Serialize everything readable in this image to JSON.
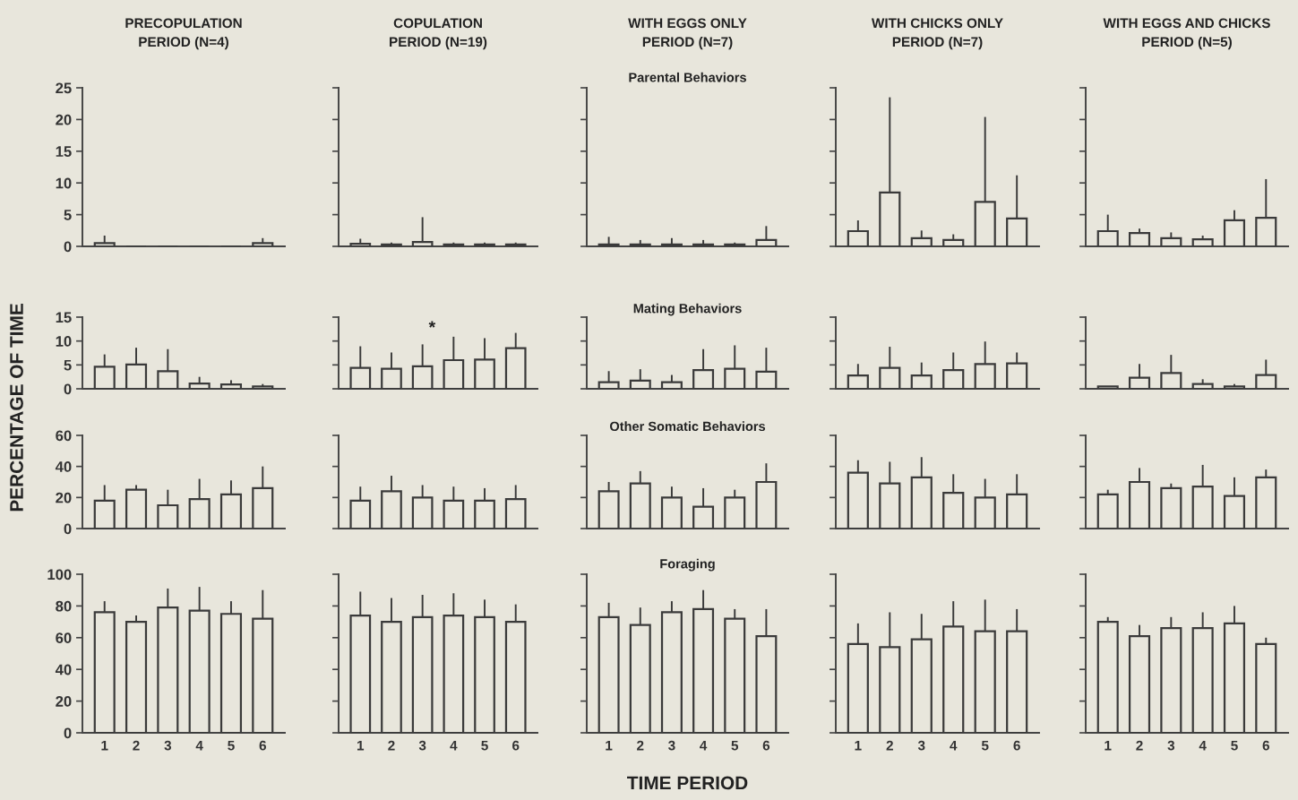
{
  "chart_data": [
    {
      "type": "bar",
      "title": "PRECOPULATION\nPERIOD (N=4)",
      "categories": [
        "1",
        "2",
        "3",
        "4",
        "5",
        "6"
      ],
      "values": [
        0.5,
        0,
        0,
        0,
        0,
        0.5
      ],
      "errors": [
        [
          0.5,
          1.7
        ],
        null,
        null,
        null,
        null,
        [
          0.5,
          1.3
        ]
      ],
      "color": "#3a3a3a",
      "ylim": [
        0,
        25
      ],
      "yticks": [
        0,
        5,
        10,
        15,
        20,
        25
      ],
      "tick_labels": "y"
    },
    {
      "type": "bar",
      "title": "COPULATION\nPERIOD (N=19)",
      "categories": [
        "1",
        "2",
        "3",
        "4",
        "5",
        "6"
      ],
      "values": [
        0.4,
        0.3,
        0.7,
        0.3,
        0.3,
        0.3
      ],
      "errors": [
        [
          0.4,
          1.2
        ],
        [
          0.3,
          0.6
        ],
        [
          0.7,
          4.6
        ],
        [
          0.3,
          0.6
        ],
        [
          0.3,
          0.6
        ],
        [
          0.3,
          0.6
        ]
      ],
      "color": "#3a3a3a",
      "ylim": [
        0,
        25
      ],
      "yticks": [
        0,
        5,
        10,
        15,
        20,
        25
      ],
      "tick_labels": false
    },
    {
      "type": "bar",
      "title": "WITH EGGS ONLY\nPERIOD (N=7)",
      "subtitle": "Parental Behaviors",
      "categories": [
        "1",
        "2",
        "3",
        "4",
        "5",
        "6"
      ],
      "values": [
        0.3,
        0.3,
        0.3,
        0.3,
        0.3,
        1.0
      ],
      "errors": [
        [
          0.3,
          1.5
        ],
        [
          0.3,
          1.0
        ],
        [
          0.3,
          1.3
        ],
        [
          0.3,
          1.0
        ],
        [
          0.3,
          0.6
        ],
        [
          1.0,
          3.2
        ]
      ],
      "color": "#3a3a3a",
      "ylim": [
        0,
        25
      ],
      "yticks": [
        0,
        5,
        10,
        15,
        20,
        25
      ],
      "tick_labels": false
    },
    {
      "type": "bar",
      "title": "WITH CHICKS ONLY\nPERIOD (N=7)",
      "categories": [
        "1",
        "2",
        "3",
        "4",
        "5",
        "6"
      ],
      "values": [
        2.4,
        8.5,
        1.3,
        1.0,
        7.0,
        4.4
      ],
      "errors": [
        [
          2.4,
          4.1
        ],
        [
          8.5,
          23.5
        ],
        [
          1.3,
          2.5
        ],
        [
          1.0,
          1.9
        ],
        [
          7.0,
          20.4
        ],
        [
          4.4,
          11.2
        ]
      ],
      "color": "#3a3a3a",
      "ylim": [
        0,
        25
      ],
      "yticks": [
        0,
        5,
        10,
        15,
        20,
        25
      ],
      "tick_labels": false
    },
    {
      "type": "bar",
      "title": "WITH EGGS AND CHICKS\nPERIOD (N=5)",
      "categories": [
        "1",
        "2",
        "3",
        "4",
        "5",
        "6"
      ],
      "values": [
        2.4,
        2.1,
        1.3,
        1.1,
        4.1,
        4.5
      ],
      "errors": [
        [
          2.4,
          5.0
        ],
        [
          2.1,
          2.8
        ],
        [
          1.3,
          2.2
        ],
        [
          1.1,
          1.7
        ],
        [
          4.1,
          5.7
        ],
        [
          4.5,
          10.6
        ]
      ],
      "color": "#3a3a3a",
      "ylim": [
        0,
        25
      ],
      "yticks": [
        0,
        5,
        10,
        15,
        20,
        25
      ],
      "tick_labels": false
    },
    {
      "type": "bar",
      "ylabel": "PERCENTAGE OF TIME",
      "categories": [
        "1",
        "2",
        "3",
        "4",
        "5",
        "6"
      ],
      "values": [
        4.6,
        5.1,
        3.7,
        1.1,
        0.9,
        0.5
      ],
      "errors": [
        [
          4.6,
          7.2
        ],
        [
          5.1,
          8.6
        ],
        [
          3.7,
          8.3
        ],
        [
          1.1,
          2.5
        ],
        [
          0.9,
          1.8
        ],
        [
          0.5,
          1.0
        ]
      ],
      "color": "#3a3a3a",
      "ylim": [
        0,
        15
      ],
      "yticks": [
        0,
        5,
        10,
        15
      ],
      "tick_labels": "y"
    },
    {
      "type": "bar",
      "categories": [
        "1",
        "2",
        "3",
        "4",
        "5",
        "6"
      ],
      "values": [
        4.4,
        4.2,
        4.7,
        6.0,
        6.1,
        8.5
      ],
      "errors": [
        [
          4.4,
          8.9
        ],
        [
          4.2,
          7.6
        ],
        [
          4.7,
          9.3
        ],
        [
          6.0,
          10.9
        ],
        [
          6.1,
          10.6
        ],
        [
          8.5,
          11.7
        ]
      ],
      "color": "#3a3a3a",
      "ylim": [
        0,
        15
      ],
      "yticks": [
        0,
        5,
        10,
        15
      ],
      "tick_labels": false,
      "annotations": [
        "*"
      ]
    },
    {
      "type": "bar",
      "subtitle": "Mating Behaviors",
      "categories": [
        "1",
        "2",
        "3",
        "4",
        "5",
        "6"
      ],
      "values": [
        1.4,
        1.7,
        1.4,
        3.9,
        4.2,
        3.6
      ],
      "errors": [
        [
          1.4,
          3.7
        ],
        [
          1.7,
          4.1
        ],
        [
          1.4,
          2.9
        ],
        [
          3.9,
          8.3
        ],
        [
          4.2,
          9.1
        ],
        [
          3.6,
          8.6
        ]
      ],
      "color": "#3a3a3a",
      "ylim": [
        0,
        15
      ],
      "yticks": [
        0,
        5,
        10,
        15
      ],
      "tick_labels": false
    },
    {
      "type": "bar",
      "categories": [
        "1",
        "2",
        "3",
        "4",
        "5",
        "6"
      ],
      "values": [
        2.8,
        4.4,
        2.8,
        3.9,
        5.2,
        5.3
      ],
      "errors": [
        [
          2.8,
          5.2
        ],
        [
          4.4,
          8.8
        ],
        [
          2.8,
          5.5
        ],
        [
          3.9,
          7.6
        ],
        [
          5.2,
          9.9
        ],
        [
          5.3,
          7.6
        ]
      ],
      "color": "#3a3a3a",
      "ylim": [
        0,
        15
      ],
      "yticks": [
        0,
        5,
        10,
        15
      ],
      "tick_labels": false
    },
    {
      "type": "bar",
      "categories": [
        "1",
        "2",
        "3",
        "4",
        "5",
        "6"
      ],
      "values": [
        0.5,
        2.3,
        3.3,
        1.0,
        0.5,
        2.9
      ],
      "errors": [
        null,
        [
          2.3,
          5.2
        ],
        [
          3.3,
          7.1
        ],
        [
          1.0,
          2.0
        ],
        [
          0.5,
          1.0
        ],
        [
          2.9,
          6.1
        ]
      ],
      "color": "#3a3a3a",
      "ylim": [
        0,
        15
      ],
      "yticks": [
        0,
        5,
        10,
        15
      ],
      "tick_labels": false
    },
    {
      "type": "bar",
      "categories": [
        "1",
        "2",
        "3",
        "4",
        "5",
        "6"
      ],
      "values": [
        18,
        25,
        15,
        19,
        22,
        26
      ],
      "errors": [
        [
          18,
          28
        ],
        [
          25,
          28
        ],
        [
          15,
          25
        ],
        [
          19,
          32
        ],
        [
          22,
          31
        ],
        [
          26,
          40
        ]
      ],
      "color": "#3a3a3a",
      "ylim": [
        0,
        60
      ],
      "yticks": [
        0,
        20,
        40,
        60
      ],
      "tick_labels": "y"
    },
    {
      "type": "bar",
      "categories": [
        "1",
        "2",
        "3",
        "4",
        "5",
        "6"
      ],
      "values": [
        18,
        24,
        20,
        18,
        18,
        19
      ],
      "errors": [
        [
          18,
          27
        ],
        [
          24,
          34
        ],
        [
          20,
          28
        ],
        [
          18,
          27
        ],
        [
          18,
          26
        ],
        [
          19,
          28
        ]
      ],
      "color": "#3a3a3a",
      "ylim": [
        0,
        60
      ],
      "yticks": [
        0,
        20,
        40,
        60
      ],
      "tick_labels": false
    },
    {
      "type": "bar",
      "subtitle": "Other Somatic Behaviors",
      "categories": [
        "1",
        "2",
        "3",
        "4",
        "5",
        "6"
      ],
      "values": [
        24,
        29,
        20,
        14,
        20,
        30
      ],
      "errors": [
        [
          24,
          30
        ],
        [
          29,
          37
        ],
        [
          20,
          27
        ],
        [
          14,
          26
        ],
        [
          20,
          25
        ],
        [
          30,
          42
        ]
      ],
      "color": "#3a3a3a",
      "ylim": [
        0,
        60
      ],
      "yticks": [
        0,
        20,
        40,
        60
      ],
      "tick_labels": false
    },
    {
      "type": "bar",
      "categories": [
        "1",
        "2",
        "3",
        "4",
        "5",
        "6"
      ],
      "values": [
        36,
        29,
        33,
        23,
        20,
        22
      ],
      "errors": [
        [
          36,
          44
        ],
        [
          29,
          43
        ],
        [
          33,
          46
        ],
        [
          23,
          35
        ],
        [
          20,
          32
        ],
        [
          22,
          35
        ]
      ],
      "color": "#3a3a3a",
      "ylim": [
        0,
        60
      ],
      "yticks": [
        0,
        20,
        40,
        60
      ],
      "tick_labels": false
    },
    {
      "type": "bar",
      "categories": [
        "1",
        "2",
        "3",
        "4",
        "5",
        "6"
      ],
      "values": [
        22,
        30,
        26,
        27,
        21,
        33
      ],
      "errors": [
        [
          22,
          25
        ],
        [
          30,
          39
        ],
        [
          26,
          29
        ],
        [
          27,
          41
        ],
        [
          21,
          33
        ],
        [
          33,
          38
        ]
      ],
      "color": "#3a3a3a",
      "ylim": [
        0,
        60
      ],
      "yticks": [
        0,
        20,
        40,
        60
      ],
      "tick_labels": false
    },
    {
      "type": "bar",
      "categories": [
        "1",
        "2",
        "3",
        "4",
        "5",
        "6"
      ],
      "values": [
        76,
        70,
        79,
        77,
        75,
        72
      ],
      "errors": [
        [
          76,
          83
        ],
        [
          70,
          74
        ],
        [
          79,
          91
        ],
        [
          77,
          92
        ],
        [
          75,
          83
        ],
        [
          72,
          90
        ]
      ],
      "color": "#3a3a3a",
      "ylim": [
        0,
        100
      ],
      "yticks": [
        0,
        20,
        40,
        60,
        80,
        100
      ]
    },
    {
      "type": "bar",
      "categories": [
        "1",
        "2",
        "3",
        "4",
        "5",
        "6"
      ],
      "values": [
        74,
        70,
        73,
        74,
        73,
        70
      ],
      "errors": [
        [
          74,
          89
        ],
        [
          70,
          85
        ],
        [
          73,
          87
        ],
        [
          74,
          88
        ],
        [
          73,
          84
        ],
        [
          70,
          81
        ]
      ],
      "color": "#3a3a3a",
      "ylim": [
        0,
        100
      ],
      "yticks": [
        0,
        20,
        40,
        60,
        80,
        100
      ],
      "tick_labels": "x"
    },
    {
      "type": "bar",
      "subtitle": "Foraging",
      "xlabel": "TIME PERIOD",
      "categories": [
        "1",
        "2",
        "3",
        "4",
        "5",
        "6"
      ],
      "values": [
        73,
        68,
        76,
        78,
        72,
        61
      ],
      "errors": [
        [
          73,
          82
        ],
        [
          68,
          79
        ],
        [
          76,
          83
        ],
        [
          78,
          90
        ],
        [
          72,
          78
        ],
        [
          61,
          78
        ]
      ],
      "color": "#3a3a3a",
      "ylim": [
        0,
        100
      ],
      "yticks": [
        0,
        20,
        40,
        60,
        80,
        100
      ],
      "tick_labels": "x"
    },
    {
      "type": "bar",
      "categories": [
        "1",
        "2",
        "3",
        "4",
        "5",
        "6"
      ],
      "values": [
        56,
        54,
        59,
        67,
        64,
        64
      ],
      "errors": [
        [
          56,
          69
        ],
        [
          54,
          76
        ],
        [
          59,
          75
        ],
        [
          67,
          83
        ],
        [
          64,
          84
        ],
        [
          64,
          78
        ]
      ],
      "color": "#3a3a3a",
      "ylim": [
        0,
        100
      ],
      "yticks": [
        0,
        20,
        40,
        60,
        80,
        100
      ],
      "tick_labels": "x"
    },
    {
      "type": "bar",
      "categories": [
        "1",
        "2",
        "3",
        "4",
        "5",
        "6"
      ],
      "values": [
        70,
        61,
        66,
        66,
        69,
        56
      ],
      "errors": [
        [
          70,
          73
        ],
        [
          61,
          68
        ],
        [
          66,
          73
        ],
        [
          66,
          76
        ],
        [
          69,
          80
        ],
        [
          56,
          60
        ]
      ],
      "color": "#3a3a3a",
      "ylim": [
        0,
        100
      ],
      "yticks": [
        0,
        20,
        40,
        60,
        80,
        100
      ],
      "tick_labels": "x"
    }
  ]
}
